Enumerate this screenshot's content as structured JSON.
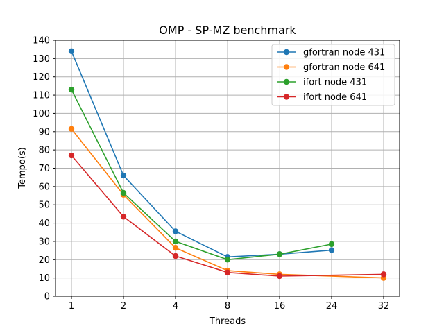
{
  "chart_data": {
    "type": "line",
    "title": "OMP - SP-MZ benchmark",
    "xlabel": "Threads",
    "ylabel": "Tempo(s)",
    "categories": [
      "1",
      "2",
      "4",
      "8",
      "16",
      "24",
      "32"
    ],
    "ylim": [
      0,
      140
    ],
    "yticks": [
      0,
      10,
      20,
      30,
      40,
      50,
      60,
      70,
      80,
      90,
      100,
      110,
      120,
      130,
      140
    ],
    "grid": true,
    "legend_position": "top-right",
    "series": [
      {
        "name": "gfortran node 431",
        "color": "#1f77b4",
        "values": [
          134,
          66,
          35.5,
          21.5,
          23,
          25.2,
          null
        ]
      },
      {
        "name": "gfortran node 641",
        "color": "#ff7f0e",
        "values": [
          91.5,
          55.5,
          26.5,
          14,
          12,
          null,
          10
        ]
      },
      {
        "name": "ifort node 431",
        "color": "#2ca02c",
        "values": [
          113,
          56.5,
          30,
          20,
          23,
          28.5,
          null
        ]
      },
      {
        "name": "ifort node 641",
        "color": "#d62728",
        "values": [
          77,
          43.5,
          22,
          13,
          11,
          null,
          12
        ]
      }
    ]
  }
}
